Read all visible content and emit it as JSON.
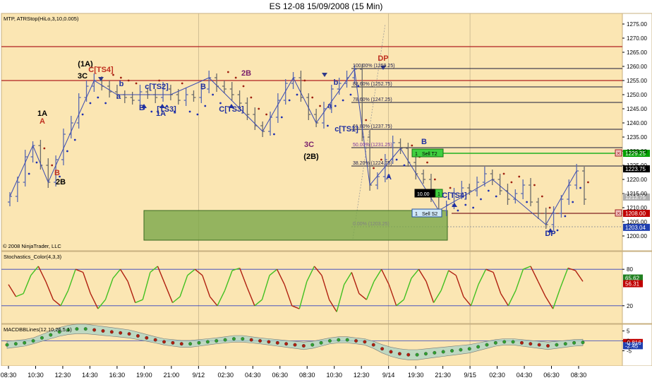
{
  "window": {
    "title": "ES 12-08  15/09/2008 (15 Min)"
  },
  "panels": {
    "price": {
      "indicator_label": "MTP, ATRStop(HiLo,3,10,0.005)",
      "copyright": "© 2008 NinjaTrader, LLC",
      "price_axis": {
        "min": 1197,
        "max": 1279,
        "ticks": [
          "1275.00",
          "1270.00",
          "1265.00",
          "1260.00",
          "1255.00",
          "1250.00",
          "1245.00",
          "1240.00",
          "1235.00",
          "1230.00",
          "1225.00",
          "1220.00",
          "1215.00",
          "1210.00",
          "1205.00",
          "1200.00"
        ],
        "tick_values": [
          1275,
          1270,
          1265,
          1260,
          1255,
          1250,
          1245,
          1240,
          1235,
          1230,
          1225,
          1220,
          1215,
          1210,
          1205,
          1200
        ]
      },
      "price_markers": [
        {
          "label": "1229.25",
          "value": 1229.25,
          "bg": "#00a000"
        },
        {
          "label": "1223.75",
          "value": 1223.75,
          "bg": "#000000"
        },
        {
          "label": "1213.75",
          "value": 1213.75,
          "bg": "#b0b0b0"
        },
        {
          "label": "1208.00",
          "value": 1208.0,
          "bg": "#c00000"
        },
        {
          "label": "1203.04",
          "value": 1203.04,
          "bg": "#1f3fb0"
        }
      ],
      "fib_levels": [
        {
          "label": "100.00% (1259.25)",
          "value": 1259.25
        },
        {
          "label": "88.60% (1252.75)",
          "value": 1252.75
        },
        {
          "label": "78.60% (1247.25)",
          "value": 1247.25
        },
        {
          "label": "61.80% (1237.75)",
          "value": 1237.75
        },
        {
          "label": "50.00% (1231.25)",
          "value": 1231.25
        },
        {
          "label": "38.20% (1224.75)",
          "value": 1224.75
        },
        {
          "label": "0.00% (1203.25)",
          "value": 1203.25
        }
      ],
      "annotations": [
        {
          "text": "1A",
          "color": "#000000"
        },
        {
          "text": "A",
          "color": "#c03020"
        },
        {
          "text": "B",
          "color": "#c03020"
        },
        {
          "text": "2B",
          "color": "#000000"
        },
        {
          "text": "(1A)",
          "color": "#000000"
        },
        {
          "text": "3C",
          "color": "#000000"
        },
        {
          "text": "C[TS4]",
          "color": "#c03020"
        },
        {
          "text": "b",
          "color": "#1f2fa0"
        },
        {
          "text": "a",
          "color": "#1f2fa0"
        },
        {
          "text": "B",
          "color": "#1f2fa0"
        },
        {
          "text": "c[TS2]",
          "color": "#1f2fa0"
        },
        {
          "text": "[TS3]",
          "color": "#1f2fa0"
        },
        {
          "text": "1A",
          "color": "#1f2fa0"
        },
        {
          "text": "B",
          "color": "#1f2fa0"
        },
        {
          "text": "C[TS3]",
          "color": "#1f2fa0"
        },
        {
          "text": "2B",
          "color": "#7a1f6a"
        },
        {
          "text": "3C",
          "color": "#7a1f6a"
        },
        {
          "text": "(2B)",
          "color": "#000000"
        },
        {
          "text": "b",
          "color": "#1f2fa0"
        },
        {
          "text": "a",
          "color": "#1f2fa0"
        },
        {
          "text": "c[TS1]",
          "color": "#1f2fa0"
        },
        {
          "text": "DP",
          "color": "#c03020"
        },
        {
          "text": "A",
          "color": "#1f2fa0"
        },
        {
          "text": "B",
          "color": "#1f2fa0"
        },
        {
          "text": "C[TS4]",
          "color": "#1f2fa0"
        },
        {
          "text": "DP",
          "color": "#1f2fa0"
        }
      ],
      "order_boxes": [
        {
          "qty": "1",
          "label": "Sell T2"
        },
        {
          "qty": "10.00",
          "label": "1"
        },
        {
          "qty": "1",
          "label": "Sell S2"
        }
      ]
    },
    "stochastics": {
      "label": "Stochastics_Color(4,3,3)",
      "axis_ticks": [
        "80",
        "20"
      ],
      "axis_values": [
        80,
        20
      ],
      "markers": [
        {
          "label": "65.62",
          "value": 65.62,
          "bg": "#208020"
        },
        {
          "label": "56.31",
          "value": 56.31,
          "bg": "#c00000"
        }
      ]
    },
    "macd": {
      "label": "MACDBBLines(12,10,26,5,1)",
      "axis_ticks": [
        "5",
        "0",
        "-5"
      ],
      "axis_values": [
        5,
        0,
        -5
      ],
      "markers": [
        {
          "label": "-0.816",
          "value": -0.816,
          "bg": "#c00000"
        },
        {
          "label": "-2.45",
          "value": -2.45,
          "bg": "#1f3fb0"
        }
      ]
    }
  },
  "time_axis": {
    "labels": [
      "08:30",
      "10:30",
      "12:30",
      "14:30",
      "16:30",
      "19:00",
      "21:00",
      "9/12",
      "02:30",
      "04:30",
      "06:30",
      "08:30",
      "10:30",
      "12:30",
      "9/14",
      "19:30",
      "21:30",
      "9/15",
      "02:30",
      "04:30",
      "06:30",
      "08:30"
    ]
  },
  "colors": {
    "panel_bg": "#fbe6b3",
    "up_bar": "#5a6ab0",
    "down_bar": "#6a6a6a",
    "stop_dots_red": "#a02010",
    "stop_dots_blue": "#1f2fb0",
    "stoch_up": "#40c020",
    "stoch_down": "#b02010",
    "macd_band_fill": "#a9d3c5"
  },
  "chart_data": {
    "type": "line",
    "title": "ES 12-08  15/09/2008 (15 Min)",
    "xlabel": "",
    "ylabel": "",
    "ylim": [
      1197,
      1279
    ],
    "series": [
      {
        "values": [
          1214,
          1219,
          1228,
          1232,
          1225,
          1219,
          1227,
          1236,
          1240,
          1249,
          1253,
          1255,
          1253,
          1251,
          1250,
          1249,
          1248,
          1251,
          1250,
          1249,
          1252,
          1250,
          1248,
          1250,
          1249,
          1252,
          1256,
          1253,
          1252,
          1250,
          1247,
          1243,
          1239,
          1237,
          1242,
          1248,
          1254,
          1256,
          1249,
          1243,
          1240,
          1245,
          1252,
          1254,
          1256,
          1259,
          1235,
          1218,
          1221,
          1227,
          1233,
          1231,
          1226,
          1222,
          1220,
          1214,
          1209,
          1211,
          1215,
          1217,
          1216,
          1219,
          1222,
          1220,
          1216,
          1213,
          1215,
          1218,
          1212,
          1208,
          1204,
          1208,
          1213,
          1218,
          1223,
          1213
        ]
      }
    ]
  }
}
